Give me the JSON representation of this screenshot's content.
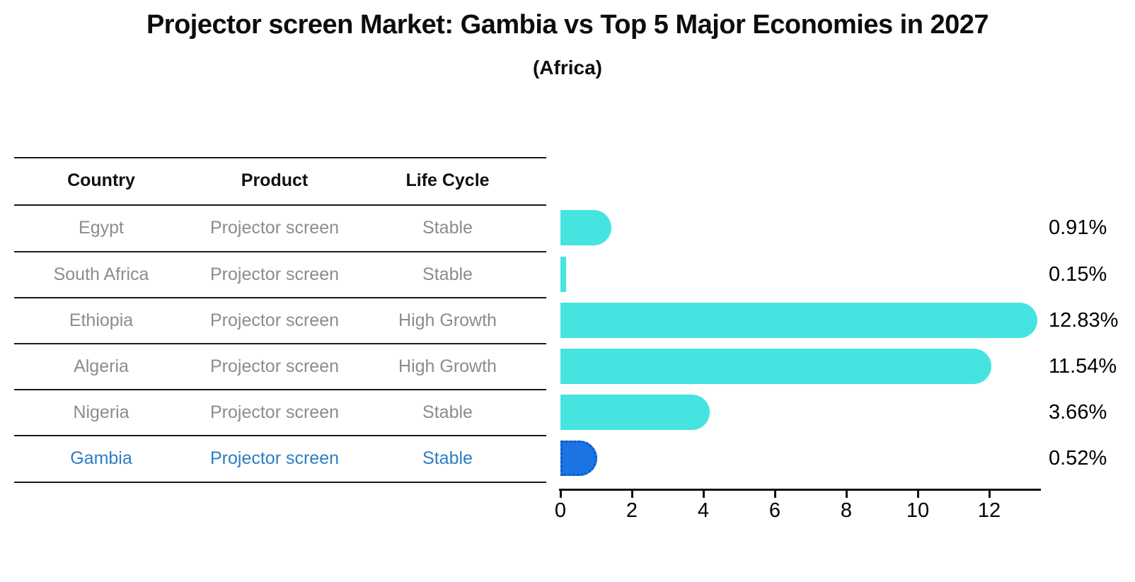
{
  "header": {
    "title": "Projector screen Market: Gambia vs Top 5 Major Economies in 2027",
    "subtitle": "(Africa)"
  },
  "table": {
    "columns": [
      "Country",
      "Product",
      "Life Cycle"
    ],
    "rows": [
      {
        "country": "Egypt",
        "product": "Projector screen",
        "life_cycle": "Stable",
        "highlighted": false
      },
      {
        "country": "South Africa",
        "product": "Projector screen",
        "life_cycle": "Stable",
        "highlighted": false
      },
      {
        "country": "Ethiopia",
        "product": "Projector screen",
        "life_cycle": "High Growth",
        "highlighted": false
      },
      {
        "country": "Algeria",
        "product": "Projector screen",
        "life_cycle": "High Growth",
        "highlighted": false
      },
      {
        "country": "Nigeria",
        "product": "Projector screen",
        "life_cycle": "Stable",
        "highlighted": false
      },
      {
        "country": "Gambia",
        "product": "Projector screen",
        "life_cycle": "Stable",
        "highlighted": true
      }
    ]
  },
  "chart_data": {
    "type": "bar",
    "orientation": "horizontal",
    "title": "Projector screen Market: Gambia vs Top 5 Major Economies in 2027",
    "subtitle": "(Africa)",
    "categories": [
      "Egypt",
      "South Africa",
      "Ethiopia",
      "Algeria",
      "Nigeria",
      "Gambia"
    ],
    "values": [
      0.91,
      0.15,
      12.83,
      11.54,
      3.66,
      0.52
    ],
    "value_labels": [
      "0.91%",
      "0.15%",
      "12.83%",
      "11.54%",
      "3.66%",
      "0.52%"
    ],
    "value_unit": "percent",
    "xticks": [
      0,
      2,
      4,
      6,
      8,
      10,
      12
    ],
    "xlim": [
      0,
      13.45
    ],
    "grid": false,
    "legend": false,
    "highlight_index": 5
  },
  "colors": {
    "bar": "#45E4E0",
    "highlight_bar": "#1B74E4",
    "highlight_bar_edge": "#0E57C2",
    "highlight_text": "#2E7DC4",
    "table_text": "#8C8C8C",
    "header_text": "#111111",
    "axis": "#111111",
    "background": "#FFFFFF"
  }
}
